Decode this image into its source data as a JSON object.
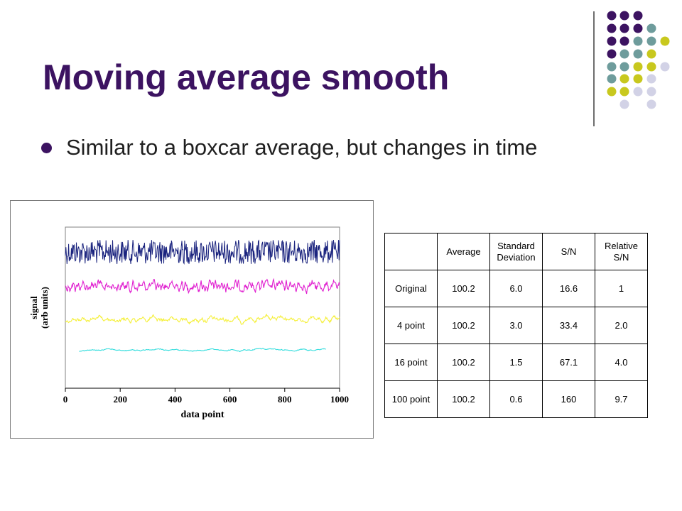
{
  "slide": {
    "title": "Moving average smooth",
    "bullet": "Similar to a boxcar average, but changes in time"
  },
  "colors": {
    "title": "#3c1361",
    "decor_dots": [
      "#3c1361",
      "#6e9c9c",
      "#c8c81e",
      "#d2d2e6"
    ]
  },
  "chart_data": {
    "type": "line",
    "xlabel": "data point",
    "ylabel": "signal\n(arb units)",
    "ylabel_lines": [
      "signal",
      "(arb units)"
    ],
    "xlim": [
      0,
      1000
    ],
    "xticks": [
      "0",
      "200",
      "400",
      "600",
      "800",
      "1000"
    ],
    "grid": false,
    "legend": "none",
    "series": [
      {
        "color": "#1a237e",
        "x_range": [
          0,
          1000
        ],
        "relative_noise": 1.0
      },
      {
        "color": "#e020d0",
        "x_range": [
          0,
          1000
        ],
        "relative_noise": 0.5
      },
      {
        "color": "#f5f03a",
        "x_range": [
          0,
          1000
        ],
        "relative_noise": 0.25
      },
      {
        "color": "#33dddd",
        "x_range": [
          50,
          950
        ],
        "relative_noise": 0.1
      }
    ]
  },
  "table": {
    "header": [
      "",
      "Average",
      "Standard Deviation",
      "S/N",
      "Relative S/N"
    ],
    "rows": [
      [
        "Original",
        "100.2",
        "6.0",
        "16.6",
        "1"
      ],
      [
        "4 point",
        "100.2",
        "3.0",
        "33.4",
        "2.0"
      ],
      [
        "16 point",
        "100.2",
        "1.5",
        "67.1",
        "4.0"
      ],
      [
        "100 point",
        "100.2",
        "0.6",
        "160",
        "9.7"
      ]
    ]
  }
}
